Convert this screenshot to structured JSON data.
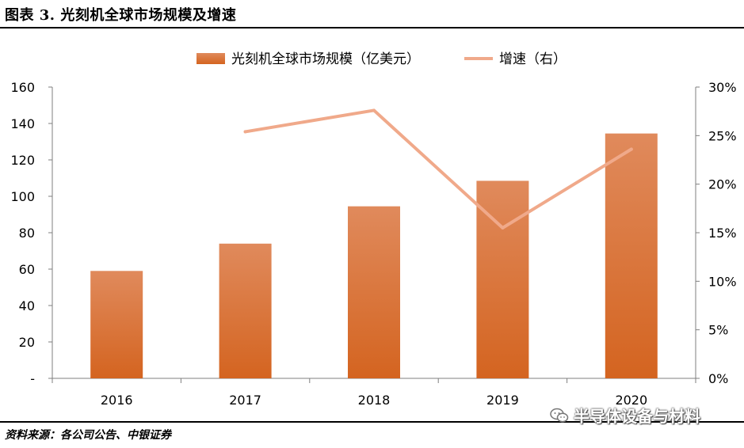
{
  "header": {
    "title": "图表 3. 光刻机全球市场规模及增速"
  },
  "footer": {
    "source": "资料来源：各公司公告、中银证券"
  },
  "watermark": {
    "text": "半导体设备与材料",
    "icon": "wechat-icon"
  },
  "colors": {
    "bar": "#d9662a",
    "bar_light": "#e08a5c",
    "line": "#f0a98a",
    "axis": "#7f7f7f"
  },
  "chart_data": {
    "type": "bar",
    "categories": [
      "2016",
      "2017",
      "2018",
      "2019",
      "2020"
    ],
    "series": [
      {
        "name": "光刻机全球市场规模（亿美元）",
        "type": "bar",
        "axis": "left",
        "values": [
          59,
          74,
          94.5,
          108.5,
          134.5
        ]
      },
      {
        "name": "增速（右）",
        "type": "line",
        "axis": "right",
        "values": [
          null,
          25.4,
          27.6,
          15.5,
          23.6
        ]
      }
    ],
    "y_left": {
      "ylim": [
        0,
        160
      ],
      "ticks": [
        0,
        20,
        40,
        60,
        80,
        100,
        120,
        140,
        160
      ],
      "tick_labels": [
        "-",
        "20",
        "40",
        "60",
        "80",
        "100",
        "120",
        "140",
        "160"
      ]
    },
    "y_right": {
      "ylim": [
        0,
        30
      ],
      "ticks": [
        0,
        5,
        10,
        15,
        20,
        25,
        30
      ],
      "tick_labels": [
        "0%",
        "5%",
        "10%",
        "15%",
        "20%",
        "25%",
        "30%"
      ]
    },
    "legend": "top-center",
    "grid": false
  }
}
